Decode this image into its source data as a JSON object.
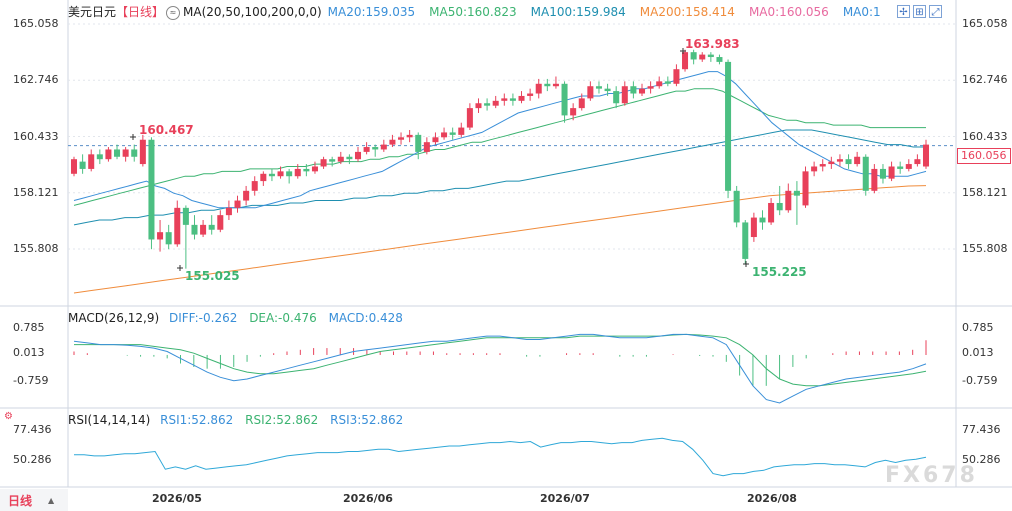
{
  "header": {
    "symbol": "美元日元",
    "period": "【日线】",
    "ma_label": "MA(20,50,100,200,0,0)",
    "ma20": "MA20:159.035",
    "ma50": "MA50:160.823",
    "ma100": "MA100:159.984",
    "ma200": "MA200:158.414",
    "ma0a": "MA0:160.056",
    "ma0b": "MA0:1"
  },
  "macd_header": {
    "label": "MACD(26,12,9)",
    "diff": "DIFF:-0.262",
    "dea": "DEA:-0.476",
    "macd": "MACD:0.428"
  },
  "rsi_header": {
    "label": "RSI(14,14,14)",
    "rsi1": "RSI1:52.862",
    "rsi2": "RSI2:52.862",
    "rsi3": "RSI3:52.862"
  },
  "price_axis": [
    "165.058",
    "162.746",
    "160.433",
    "158.121",
    "155.808"
  ],
  "price_axis_values": [
    165.058,
    162.746,
    160.433,
    158.121,
    155.808
  ],
  "current_price": "160.056",
  "macd_axis": [
    "0.785",
    "0.013",
    "-0.759"
  ],
  "rsi_axis": [
    "77.436",
    "50.286"
  ],
  "x_labels": [
    "2026/05",
    "2026/06",
    "2026/07",
    "2026/08"
  ],
  "annotations": {
    "high1": "160.467",
    "low1": "155.025",
    "high2": "163.983",
    "low2": "155.225"
  },
  "footer": {
    "period_button": "日线",
    "caret": "▲"
  },
  "watermark": "FX678",
  "colors": {
    "up": "#e8405a",
    "down": "#4cbf82",
    "ma20": "#3a8fd8",
    "ma50": "#3cb371",
    "ma100": "#1f8fb0",
    "ma200": "#f08c3c",
    "ma0": "#e8405a",
    "label_blue": "#2b8fdc"
  },
  "chart_data": {
    "type": "candlestick",
    "candles": [
      [
        158.9,
        159.5,
        159.6,
        158.8
      ],
      [
        159.4,
        159.1,
        159.7,
        158.9
      ],
      [
        159.1,
        159.7,
        159.9,
        159.0
      ],
      [
        159.7,
        159.5,
        159.9,
        159.3
      ],
      [
        159.5,
        159.9,
        160.0,
        159.4
      ],
      [
        159.9,
        159.6,
        160.1,
        159.5
      ],
      [
        159.6,
        159.9,
        160.0,
        159.4
      ],
      [
        159.9,
        159.6,
        160.1,
        159.4
      ],
      [
        159.3,
        160.3,
        160.5,
        159.2
      ],
      [
        160.3,
        156.2,
        160.4,
        155.8
      ],
      [
        156.2,
        156.5,
        157.0,
        155.7
      ],
      [
        156.5,
        156.0,
        156.8,
        155.8
      ],
      [
        156.0,
        157.5,
        157.8,
        155.9
      ],
      [
        157.5,
        156.8,
        157.6,
        155.0
      ],
      [
        156.8,
        156.4,
        157.2,
        156.2
      ],
      [
        156.4,
        156.8,
        157.0,
        156.3
      ],
      [
        156.8,
        156.6,
        157.2,
        156.4
      ],
      [
        156.6,
        157.2,
        157.4,
        156.5
      ],
      [
        157.2,
        157.5,
        157.8,
        157.0
      ],
      [
        157.5,
        157.8,
        158.0,
        157.3
      ],
      [
        157.8,
        158.2,
        158.4,
        157.6
      ],
      [
        158.2,
        158.6,
        158.8,
        158.0
      ],
      [
        158.6,
        158.9,
        159.0,
        158.4
      ],
      [
        158.9,
        158.8,
        159.1,
        158.6
      ],
      [
        158.8,
        159.0,
        159.2,
        158.7
      ],
      [
        159.0,
        158.8,
        159.1,
        158.5
      ],
      [
        158.8,
        159.1,
        159.3,
        158.7
      ],
      [
        159.1,
        159.0,
        159.3,
        158.8
      ],
      [
        159.0,
        159.2,
        159.4,
        158.9
      ],
      [
        159.2,
        159.5,
        159.6,
        159.1
      ],
      [
        159.5,
        159.4,
        159.6,
        159.2
      ],
      [
        159.4,
        159.6,
        159.8,
        159.3
      ],
      [
        159.6,
        159.5,
        159.7,
        159.3
      ],
      [
        159.5,
        159.8,
        160.0,
        159.4
      ],
      [
        159.8,
        160.0,
        160.2,
        159.7
      ],
      [
        160.0,
        159.9,
        160.1,
        159.6
      ],
      [
        159.9,
        160.1,
        160.3,
        159.8
      ],
      [
        160.1,
        160.3,
        160.5,
        160.0
      ],
      [
        160.3,
        160.4,
        160.6,
        160.1
      ],
      [
        160.4,
        160.5,
        160.7,
        160.2
      ],
      [
        160.5,
        159.8,
        160.6,
        159.5
      ],
      [
        159.8,
        160.2,
        160.4,
        159.7
      ],
      [
        160.2,
        160.4,
        160.6,
        160.1
      ],
      [
        160.4,
        160.6,
        160.8,
        160.3
      ],
      [
        160.6,
        160.5,
        160.8,
        160.3
      ],
      [
        160.5,
        160.8,
        161.0,
        160.4
      ],
      [
        160.8,
        161.6,
        161.8,
        160.7
      ],
      [
        161.6,
        161.8,
        162.0,
        161.4
      ],
      [
        161.8,
        161.7,
        162.0,
        161.5
      ],
      [
        161.7,
        161.9,
        162.1,
        161.6
      ],
      [
        161.9,
        162.0,
        162.2,
        161.7
      ],
      [
        162.0,
        161.9,
        162.2,
        161.7
      ],
      [
        161.9,
        162.1,
        162.3,
        161.8
      ],
      [
        162.1,
        162.2,
        162.4,
        161.9
      ],
      [
        162.2,
        162.6,
        162.8,
        162.0
      ],
      [
        162.6,
        162.5,
        162.8,
        162.3
      ],
      [
        162.5,
        162.6,
        162.9,
        162.4
      ],
      [
        162.6,
        161.3,
        162.7,
        161.0
      ],
      [
        161.3,
        161.6,
        161.8,
        161.1
      ],
      [
        161.6,
        162.0,
        162.2,
        161.5
      ],
      [
        162.0,
        162.5,
        162.7,
        161.9
      ],
      [
        162.5,
        162.4,
        162.7,
        162.2
      ],
      [
        162.4,
        162.3,
        162.6,
        162.1
      ],
      [
        162.3,
        161.8,
        162.5,
        161.6
      ],
      [
        161.8,
        162.5,
        162.7,
        161.7
      ],
      [
        162.5,
        162.2,
        162.7,
        162.0
      ],
      [
        162.2,
        162.4,
        162.6,
        162.1
      ],
      [
        162.4,
        162.5,
        162.7,
        162.2
      ],
      [
        162.5,
        162.7,
        162.9,
        162.4
      ],
      [
        162.7,
        162.6,
        162.9,
        162.5
      ],
      [
        162.6,
        163.2,
        163.4,
        162.5
      ],
      [
        163.2,
        163.9,
        164.0,
        163.1
      ],
      [
        163.9,
        163.6,
        164.0,
        163.4
      ],
      [
        163.6,
        163.8,
        163.9,
        163.5
      ],
      [
        163.8,
        163.7,
        163.9,
        163.5
      ],
      [
        163.7,
        163.5,
        163.8,
        163.4
      ],
      [
        163.5,
        158.2,
        163.6,
        157.9
      ],
      [
        158.2,
        156.9,
        158.4,
        156.7
      ],
      [
        156.9,
        155.4,
        157.0,
        155.2
      ],
      [
        156.3,
        157.1,
        157.3,
        156.1
      ],
      [
        157.1,
        156.9,
        157.4,
        156.6
      ],
      [
        156.9,
        157.7,
        157.9,
        156.8
      ],
      [
        157.7,
        157.4,
        158.4,
        157.2
      ],
      [
        157.4,
        158.2,
        158.5,
        157.3
      ],
      [
        158.2,
        158.0,
        158.6,
        156.8
      ],
      [
        157.6,
        159.0,
        159.2,
        157.5
      ],
      [
        159.0,
        159.2,
        159.4,
        158.8
      ],
      [
        159.2,
        159.3,
        159.5,
        159.0
      ],
      [
        159.3,
        159.4,
        159.6,
        159.1
      ],
      [
        159.4,
        159.5,
        159.7,
        159.2
      ],
      [
        159.5,
        159.3,
        159.7,
        159.1
      ],
      [
        159.3,
        159.6,
        159.8,
        159.2
      ],
      [
        159.6,
        158.2,
        159.7,
        158.0
      ],
      [
        158.2,
        159.1,
        159.3,
        158.1
      ],
      [
        159.1,
        158.7,
        159.3,
        158.5
      ],
      [
        158.7,
        159.2,
        159.4,
        158.6
      ],
      [
        159.2,
        159.1,
        159.4,
        158.9
      ],
      [
        159.1,
        159.3,
        159.5,
        159.0
      ],
      [
        159.3,
        159.5,
        159.7,
        159.2
      ],
      [
        159.2,
        160.1,
        160.3,
        159.1
      ]
    ],
    "ma20": [
      157.8,
      157.9,
      158.0,
      158.1,
      158.2,
      158.3,
      158.4,
      158.5,
      158.6,
      158.4,
      158.3,
      158.1,
      158.0,
      157.8,
      157.7,
      157.6,
      157.5,
      157.5,
      157.5,
      157.5,
      157.5,
      157.6,
      157.7,
      157.8,
      157.9,
      158.0,
      158.2,
      158.3,
      158.4,
      158.5,
      158.6,
      158.7,
      158.8,
      158.9,
      159.0,
      159.2,
      159.4,
      159.6,
      159.8,
      160.0,
      160.1,
      160.2,
      160.3,
      160.4,
      160.5,
      160.6,
      160.8,
      161.0,
      161.2,
      161.4,
      161.5,
      161.6,
      161.7,
      161.8,
      161.9,
      162.0,
      162.1,
      162.1,
      162.1,
      162.2,
      162.2,
      162.3,
      162.4,
      162.4,
      162.5,
      162.6,
      162.7,
      162.8,
      162.9,
      163.0,
      163.1,
      163.1,
      162.9,
      162.6,
      162.2,
      161.8,
      161.4,
      161.0,
      160.7,
      160.4,
      160.1,
      159.9,
      159.7,
      159.5,
      159.3,
      159.1,
      159.0,
      158.9,
      158.9,
      158.8,
      158.8,
      158.8,
      158.8,
      158.9,
      159.0
    ],
    "ma50": [
      157.6,
      157.7,
      157.8,
      157.9,
      158.0,
      158.1,
      158.2,
      158.3,
      158.4,
      158.5,
      158.6,
      158.7,
      158.8,
      158.8,
      158.9,
      158.9,
      159.0,
      159.0,
      159.0,
      159.1,
      159.1,
      159.1,
      159.1,
      159.2,
      159.2,
      159.2,
      159.3,
      159.3,
      159.3,
      159.4,
      159.4,
      159.4,
      159.5,
      159.5,
      159.6,
      159.6,
      159.7,
      159.7,
      159.8,
      159.9,
      159.9,
      160.0,
      160.1,
      160.2,
      160.2,
      160.3,
      160.4,
      160.5,
      160.6,
      160.7,
      160.8,
      160.9,
      161.0,
      161.1,
      161.2,
      161.3,
      161.4,
      161.5,
      161.6,
      161.7,
      161.8,
      161.9,
      162.0,
      162.1,
      162.2,
      162.3,
      162.3,
      162.4,
      162.4,
      162.4,
      162.3,
      162.1,
      161.9,
      161.7,
      161.5,
      161.3,
      161.2,
      161.1,
      161.1,
      161.0,
      161.0,
      161.0,
      160.9,
      160.9,
      160.9,
      160.9,
      160.8,
      160.8,
      160.8,
      160.8,
      160.8,
      160.8,
      160.8
    ],
    "ma100": [
      156.8,
      156.9,
      157.0,
      157.0,
      157.1,
      157.1,
      157.2,
      157.2,
      157.3,
      157.3,
      157.4,
      157.4,
      157.5,
      157.5,
      157.6,
      157.6,
      157.6,
      157.7,
      157.7,
      157.8,
      157.8,
      157.8,
      157.9,
      157.9,
      158.0,
      158.0,
      158.1,
      158.1,
      158.2,
      158.2,
      158.3,
      158.3,
      158.4,
      158.5,
      158.6,
      158.6,
      158.7,
      158.8,
      158.9,
      159.0,
      159.1,
      159.2,
      159.3,
      159.4,
      159.5,
      159.6,
      159.7,
      159.8,
      159.9,
      160.0,
      160.1,
      160.2,
      160.3,
      160.4,
      160.5,
      160.6,
      160.7,
      160.7,
      160.7,
      160.6,
      160.5,
      160.4,
      160.3,
      160.2,
      160.1,
      160.1,
      160.0,
      160.0
    ],
    "ma200": [
      154.0,
      154.1,
      154.2,
      154.3,
      154.4,
      154.5,
      154.6,
      154.7,
      154.8,
      154.9,
      155.0,
      155.1,
      155.2,
      155.3,
      155.4,
      155.5,
      155.6,
      155.7,
      155.8,
      155.9,
      156.0,
      156.1,
      156.2,
      156.3,
      156.4,
      156.5,
      156.6,
      156.7,
      156.8,
      156.9,
      157.0,
      157.1,
      157.2,
      157.3,
      157.4,
      157.5,
      157.6,
      157.7,
      157.8,
      157.9,
      158.0,
      158.05,
      158.1,
      158.15,
      158.2,
      158.25,
      158.3,
      158.35,
      158.4,
      158.414
    ],
    "macd_diff": [
      0.4,
      0.35,
      0.3,
      0.3,
      0.28,
      0.25,
      0.2,
      0.1,
      -0.1,
      -0.3,
      -0.5,
      -0.65,
      -0.75,
      -0.7,
      -0.6,
      -0.5,
      -0.4,
      -0.3,
      -0.2,
      -0.1,
      0.0,
      0.1,
      0.15,
      0.2,
      0.25,
      0.3,
      0.35,
      0.4,
      0.4,
      0.45,
      0.5,
      0.55,
      0.55,
      0.5,
      0.45,
      0.45,
      0.5,
      0.55,
      0.6,
      0.6,
      0.55,
      0.5,
      0.5,
      0.5,
      0.55,
      0.6,
      0.6,
      0.55,
      0.5,
      0.3,
      -0.3,
      -0.9,
      -1.3,
      -1.4,
      -1.2,
      -1.0,
      -0.9,
      -0.8,
      -0.7,
      -0.65,
      -0.6,
      -0.55,
      -0.5,
      -0.4,
      -0.262
    ],
    "macd_dea": [
      0.3,
      0.3,
      0.3,
      0.3,
      0.3,
      0.3,
      0.25,
      0.2,
      0.15,
      0.05,
      -0.1,
      -0.25,
      -0.4,
      -0.5,
      -0.55,
      -0.55,
      -0.5,
      -0.45,
      -0.4,
      -0.3,
      -0.2,
      -0.1,
      0.0,
      0.1,
      0.15,
      0.2,
      0.25,
      0.3,
      0.35,
      0.4,
      0.45,
      0.5,
      0.5,
      0.5,
      0.5,
      0.5,
      0.5,
      0.5,
      0.55,
      0.55,
      0.55,
      0.55,
      0.55,
      0.55,
      0.55,
      0.58,
      0.6,
      0.58,
      0.55,
      0.5,
      0.3,
      0.0,
      -0.4,
      -0.7,
      -0.85,
      -0.9,
      -0.9,
      -0.85,
      -0.8,
      -0.75,
      -0.7,
      -0.65,
      -0.6,
      -0.55,
      -0.476
    ],
    "macd_hist": [
      0.1,
      0.05,
      0.0,
      0.0,
      -0.02,
      -0.05,
      -0.05,
      -0.1,
      -0.25,
      -0.35,
      -0.4,
      -0.4,
      -0.35,
      -0.2,
      -0.05,
      0.05,
      0.1,
      0.15,
      0.2,
      0.2,
      0.2,
      0.2,
      0.15,
      0.1,
      0.1,
      0.1,
      0.1,
      0.1,
      0.05,
      0.05,
      0.05,
      0.05,
      0.05,
      0.0,
      -0.05,
      -0.05,
      0.0,
      0.05,
      0.05,
      0.05,
      0.0,
      -0.05,
      -0.05,
      -0.05,
      0.0,
      0.02,
      0.0,
      -0.03,
      -0.05,
      -0.2,
      -0.6,
      -0.9,
      -0.9,
      -0.7,
      -0.35,
      -0.1,
      0.0,
      0.05,
      0.1,
      0.1,
      0.1,
      0.1,
      0.1,
      0.15,
      0.428
    ],
    "rsi": [
      55,
      55,
      54,
      54,
      55,
      56,
      56,
      57,
      58,
      42,
      44,
      42,
      45,
      42,
      43,
      44,
      45,
      46,
      48,
      50,
      52,
      54,
      55,
      56,
      57,
      57,
      57,
      58,
      58,
      59,
      60,
      60,
      58,
      59,
      60,
      61,
      62,
      63,
      63,
      64,
      65,
      66,
      66,
      67,
      66,
      67,
      62,
      64,
      66,
      66,
      67,
      67,
      66,
      65,
      66,
      66,
      68,
      69,
      70,
      68,
      67,
      60,
      50,
      38,
      36,
      38,
      38,
      40,
      41,
      44,
      45,
      46,
      46,
      47,
      47,
      46,
      46,
      45,
      44,
      48,
      50,
      48,
      50,
      51,
      52.862
    ]
  }
}
